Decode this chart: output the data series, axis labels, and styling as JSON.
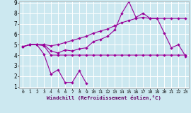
{
  "xlabel": "Windchill (Refroidissement éolien,°C)",
  "bg_color": "#cce8f0",
  "grid_color": "#ffffff",
  "line_color": "#990099",
  "xmin": 0,
  "xmax": 23,
  "ymin": 1,
  "ymax": 9,
  "yticks": [
    1,
    2,
    3,
    4,
    5,
    6,
    7,
    8,
    9
  ],
  "xticks": [
    0,
    1,
    2,
    3,
    4,
    5,
    6,
    7,
    8,
    9,
    10,
    11,
    12,
    13,
    14,
    15,
    16,
    17,
    18,
    19,
    20,
    21,
    22,
    23
  ],
  "line1_x": [
    0,
    1,
    2,
    3,
    4,
    5,
    6,
    7,
    8,
    9
  ],
  "line1_y": [
    4.8,
    5.0,
    5.0,
    4.1,
    2.2,
    2.6,
    1.4,
    1.4,
    2.5,
    1.3
  ],
  "line2_x": [
    0,
    1,
    2,
    3,
    4,
    5,
    6,
    7,
    8,
    9,
    10,
    11,
    12,
    13,
    14,
    15,
    16,
    17,
    18,
    19,
    20,
    21,
    22,
    23
  ],
  "line2_y": [
    4.8,
    5.0,
    5.0,
    4.9,
    4.0,
    4.0,
    4.0,
    4.0,
    4.0,
    4.0,
    4.0,
    4.0,
    4.0,
    4.0,
    4.0,
    4.0,
    4.0,
    4.0,
    4.0,
    4.0,
    4.0,
    4.0,
    4.0,
    4.0
  ],
  "line3_x": [
    0,
    1,
    2,
    3,
    4,
    5,
    6,
    7,
    8,
    9,
    10,
    11,
    12,
    13,
    14,
    15,
    16,
    17,
    18,
    19,
    20,
    21,
    22,
    23
  ],
  "line3_y": [
    4.8,
    5.0,
    5.0,
    5.0,
    4.4,
    4.2,
    4.5,
    4.4,
    4.6,
    4.7,
    5.3,
    5.5,
    5.8,
    6.4,
    8.0,
    9.1,
    7.6,
    8.0,
    7.5,
    7.5,
    6.1,
    4.7,
    5.0,
    3.9
  ],
  "line4_x": [
    0,
    1,
    2,
    3,
    4,
    5,
    6,
    7,
    8,
    9,
    10,
    11,
    12,
    13,
    14,
    15,
    16,
    17,
    18,
    19,
    20,
    21,
    22,
    23
  ],
  "line4_y": [
    4.8,
    5.0,
    5.0,
    5.0,
    4.9,
    5.0,
    5.2,
    5.4,
    5.6,
    5.8,
    6.1,
    6.3,
    6.5,
    6.8,
    7.1,
    7.3,
    7.5,
    7.6,
    7.5,
    7.5,
    7.5,
    7.5,
    7.5,
    7.5
  ]
}
